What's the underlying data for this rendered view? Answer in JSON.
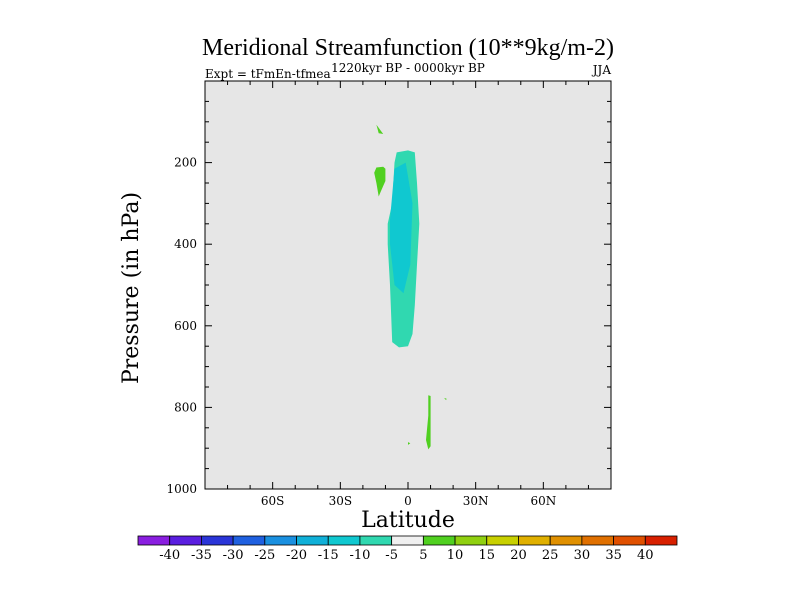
{
  "chart_data": {
    "type": "contour",
    "title": "Meridional Streamfunction (10**9kg/m-2)",
    "left_label": "Expt = tFmEn-tfmea",
    "center_label": "1220kyr BP - 0000kyr BP",
    "right_label": "JJA",
    "xlabel": "Latitude",
    "ylabel": "Pressure (in hPa)",
    "xlim": [
      -90,
      90
    ],
    "ylim": [
      1000,
      0
    ],
    "x_ticks": [
      {
        "value": -60,
        "label": "60S"
      },
      {
        "value": -30,
        "label": "30S"
      },
      {
        "value": 0,
        "label": "0"
      },
      {
        "value": 30,
        "label": "30N"
      },
      {
        "value": 60,
        "label": "60N"
      }
    ],
    "y_ticks": [
      {
        "value": 200,
        "label": "200"
      },
      {
        "value": 400,
        "label": "400"
      },
      {
        "value": 600,
        "label": "600"
      },
      {
        "value": 800,
        "label": "800"
      },
      {
        "value": 1000,
        "label": "1000"
      }
    ],
    "colorbar": {
      "labels": [
        "-40",
        "-35",
        "-30",
        "-25",
        "-20",
        "-15",
        "-10",
        "-5",
        "5",
        "10",
        "15",
        "20",
        "25",
        "30",
        "35",
        "40"
      ],
      "colors": [
        "#8a1ee0",
        "#5a1ee0",
        "#2a35d8",
        "#1f60e0",
        "#1a90e0",
        "#10b0d8",
        "#10c8d0",
        "#30d8b0",
        "#f0f0f0",
        "#50d020",
        "#90d010",
        "#c8d000",
        "#e0b000",
        "#e09000",
        "#e07000",
        "#e05000",
        "#d82000"
      ]
    },
    "background_color": "#e6e6e6",
    "regions": [
      {
        "name": "negative-core-region",
        "level": -5,
        "color": "#30d8b0",
        "points": [
          [
            -5,
            175
          ],
          [
            0,
            170
          ],
          [
            3,
            175
          ],
          [
            4,
            250
          ],
          [
            5,
            350
          ],
          [
            4,
            450
          ],
          [
            3,
            550
          ],
          [
            2,
            620
          ],
          [
            0,
            650
          ],
          [
            -4,
            653
          ],
          [
            -7,
            640
          ],
          [
            -8,
            500
          ],
          [
            -9,
            400
          ],
          [
            -9,
            350
          ],
          [
            -7,
            300
          ],
          [
            -6,
            200
          ]
        ]
      },
      {
        "name": "negative-inner-region",
        "level": -10,
        "color": "#10c8d0",
        "points": [
          [
            -6,
            215
          ],
          [
            -1,
            200
          ],
          [
            2,
            300
          ],
          [
            1,
            450
          ],
          [
            -2,
            520
          ],
          [
            -6,
            500
          ],
          [
            -8,
            400
          ],
          [
            -8,
            340
          ]
        ]
      },
      {
        "name": "positive-upper-region-1",
        "level": 5,
        "color": "#50d020",
        "points": [
          [
            -14,
            107
          ],
          [
            -11,
            130
          ],
          [
            -13,
            128
          ]
        ]
      },
      {
        "name": "positive-upper-region-2",
        "level": 5,
        "color": "#50d020",
        "points": [
          [
            -14,
            212
          ],
          [
            -11,
            210
          ],
          [
            -10,
            215
          ],
          [
            -10,
            245
          ],
          [
            -12,
            270
          ],
          [
            -13,
            283
          ],
          [
            -14,
            250
          ],
          [
            -15,
            225
          ]
        ]
      },
      {
        "name": "positive-lower-region-1",
        "level": 5,
        "color": "#50d020",
        "points": [
          [
            9,
            770
          ],
          [
            10,
            772
          ],
          [
            10,
            830
          ],
          [
            10,
            895
          ],
          [
            9,
            903
          ],
          [
            8,
            880
          ],
          [
            9,
            820
          ]
        ]
      },
      {
        "name": "positive-lower-region-2",
        "level": 5,
        "color": "#50d020",
        "points": [
          [
            0,
            885
          ],
          [
            1,
            888
          ],
          [
            0,
            892
          ]
        ]
      },
      {
        "name": "positive-lower-region-3",
        "level": 5,
        "color": "#50d020",
        "points": [
          [
            16,
            778
          ],
          [
            17,
            778
          ],
          [
            17,
            782
          ]
        ]
      }
    ]
  }
}
